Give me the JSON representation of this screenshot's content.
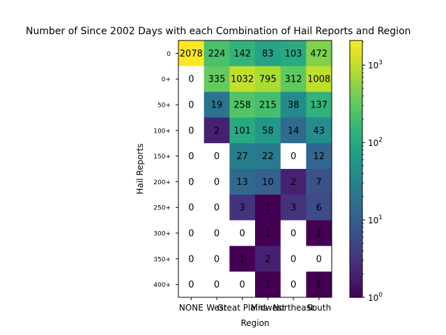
{
  "chart_data": {
    "type": "heatmap",
    "title": "Number of Since 2002 Days with each Combination of Hail Reports and Region",
    "xlabel": "Region",
    "ylabel": "Hail Reports",
    "x_categories": [
      "NONE",
      "West",
      "Great Plains",
      "Midwest",
      "Northeast",
      "South"
    ],
    "y_categories": [
      "0",
      "0+",
      "50+",
      "100+",
      "150+",
      "200+",
      "250+",
      "300+",
      "350+",
      "400+"
    ],
    "values": [
      [
        2078,
        224,
        142,
        83,
        103,
        472
      ],
      [
        0,
        335,
        1032,
        795,
        312,
        1008
      ],
      [
        0,
        19,
        258,
        215,
        38,
        137
      ],
      [
        0,
        2,
        101,
        58,
        14,
        43
      ],
      [
        0,
        0,
        27,
        22,
        0,
        12
      ],
      [
        0,
        0,
        13,
        10,
        2,
        7
      ],
      [
        0,
        0,
        3,
        1,
        3,
        6
      ],
      [
        0,
        0,
        0,
        1,
        0,
        1
      ],
      [
        0,
        0,
        1,
        2,
        0,
        0
      ],
      [
        0,
        0,
        0,
        1,
        0,
        1
      ]
    ],
    "colormap": "viridis",
    "color_scale": "log",
    "zero_cell_color": "#ffffff",
    "colorbar": {
      "range": [
        1,
        2078
      ],
      "tick_labels": [
        {
          "value": 1,
          "base": "10",
          "exp": "0"
        },
        {
          "value": 10,
          "base": "10",
          "exp": "1"
        },
        {
          "value": 100,
          "base": "10",
          "exp": "2"
        },
        {
          "value": 1000,
          "base": "10",
          "exp": "3"
        }
      ]
    },
    "grid": false
  }
}
